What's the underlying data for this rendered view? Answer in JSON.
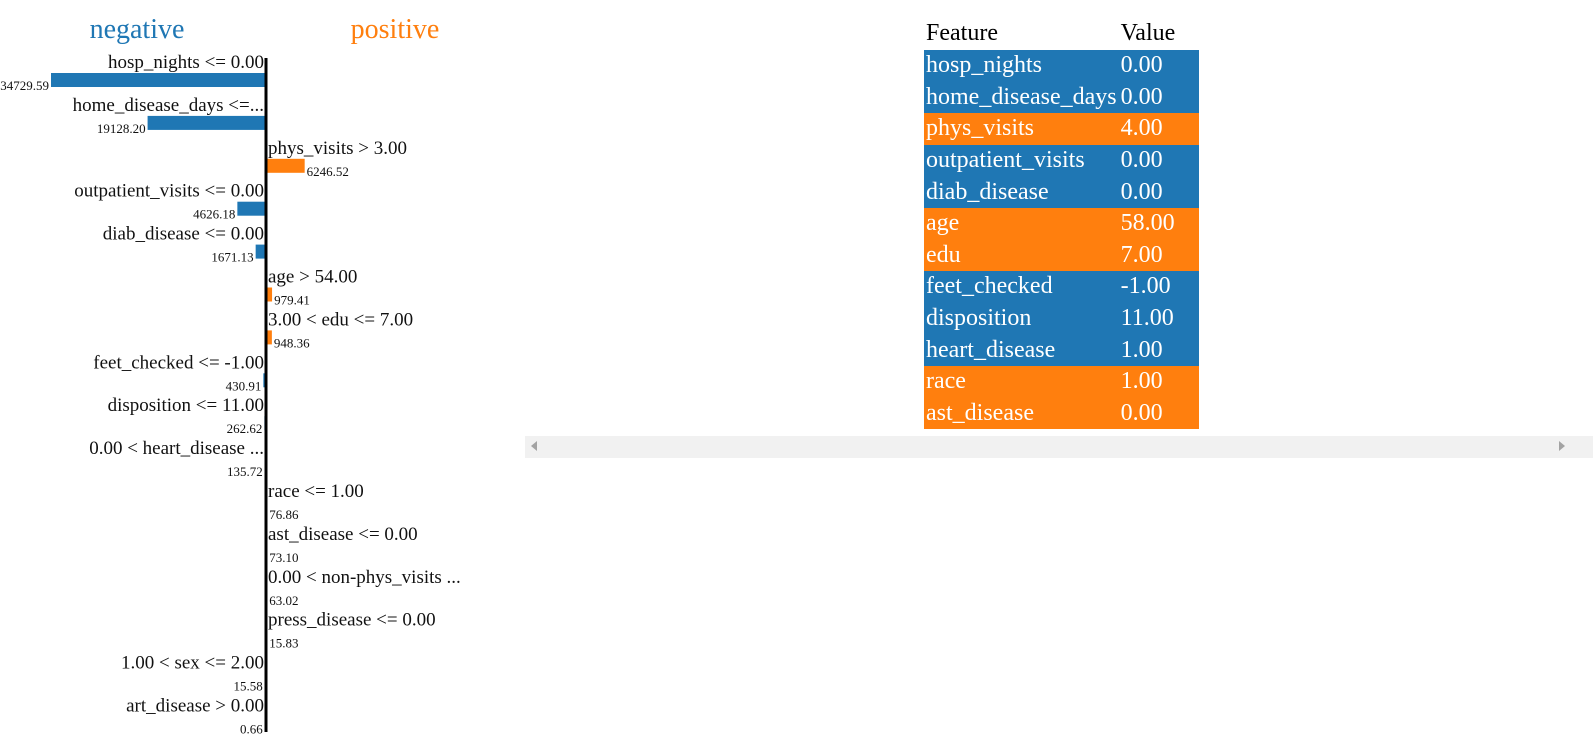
{
  "chart_data": {
    "type": "bar",
    "orientation": "horizontal",
    "legend": {
      "negative": "negative",
      "positive": "positive"
    },
    "colors": {
      "negative": "#1f77b4",
      "positive": "#ff7f0e"
    },
    "bars": [
      {
        "label": "hosp_nights <= 0.00",
        "value": -34729.59,
        "value_text": "34729.59"
      },
      {
        "label": "home_disease_days <=...",
        "value": -19128.2,
        "value_text": "19128.20"
      },
      {
        "label": "phys_visits > 3.00",
        "value": 6246.52,
        "value_text": "6246.52"
      },
      {
        "label": "outpatient_visits <= 0.00",
        "value": -4626.18,
        "value_text": "4626.18"
      },
      {
        "label": "diab_disease <= 0.00",
        "value": -1671.13,
        "value_text": "1671.13"
      },
      {
        "label": "age > 54.00",
        "value": 979.41,
        "value_text": "979.41"
      },
      {
        "label": "3.00 < edu <= 7.00",
        "value": 948.36,
        "value_text": "948.36"
      },
      {
        "label": "feet_checked <= -1.00",
        "value": -430.91,
        "value_text": "430.91"
      },
      {
        "label": "disposition <= 11.00",
        "value": -262.62,
        "value_text": "262.62"
      },
      {
        "label": "0.00 < heart_disease ...",
        "value": -135.72,
        "value_text": "135.72"
      },
      {
        "label": "race <= 1.00",
        "value": 76.86,
        "value_text": "76.86"
      },
      {
        "label": "ast_disease <= 0.00",
        "value": 73.1,
        "value_text": "73.10"
      },
      {
        "label": "0.00 < non-phys_visits ...",
        "value": 63.02,
        "value_text": "63.02"
      },
      {
        "label": "press_disease <= 0.00",
        "value": 15.83,
        "value_text": "15.83"
      },
      {
        "label": "1.00 < sex <= 2.00",
        "value": -15.58,
        "value_text": "15.58"
      },
      {
        "label": "art_disease > 0.00",
        "value": -0.66,
        "value_text": "0.66"
      }
    ]
  },
  "table": {
    "headers": {
      "feature": "Feature",
      "value": "Value"
    },
    "rows": [
      {
        "feature": "hosp_nights",
        "value": "0.00",
        "sign": "negative"
      },
      {
        "feature": "home_disease_days",
        "value": "0.00",
        "sign": "negative"
      },
      {
        "feature": "phys_visits",
        "value": "4.00",
        "sign": "positive"
      },
      {
        "feature": "outpatient_visits",
        "value": "0.00",
        "sign": "negative"
      },
      {
        "feature": "diab_disease",
        "value": "0.00",
        "sign": "negative"
      },
      {
        "feature": "age",
        "value": "58.00",
        "sign": "positive"
      },
      {
        "feature": "edu",
        "value": "7.00",
        "sign": "positive"
      },
      {
        "feature": "feet_checked",
        "value": "-1.00",
        "sign": "negative"
      },
      {
        "feature": "disposition",
        "value": "11.00",
        "sign": "negative"
      },
      {
        "feature": "heart_disease",
        "value": "1.00",
        "sign": "negative"
      },
      {
        "feature": "race",
        "value": "1.00",
        "sign": "positive"
      },
      {
        "feature": "ast_disease",
        "value": "0.00",
        "sign": "positive"
      }
    ]
  }
}
